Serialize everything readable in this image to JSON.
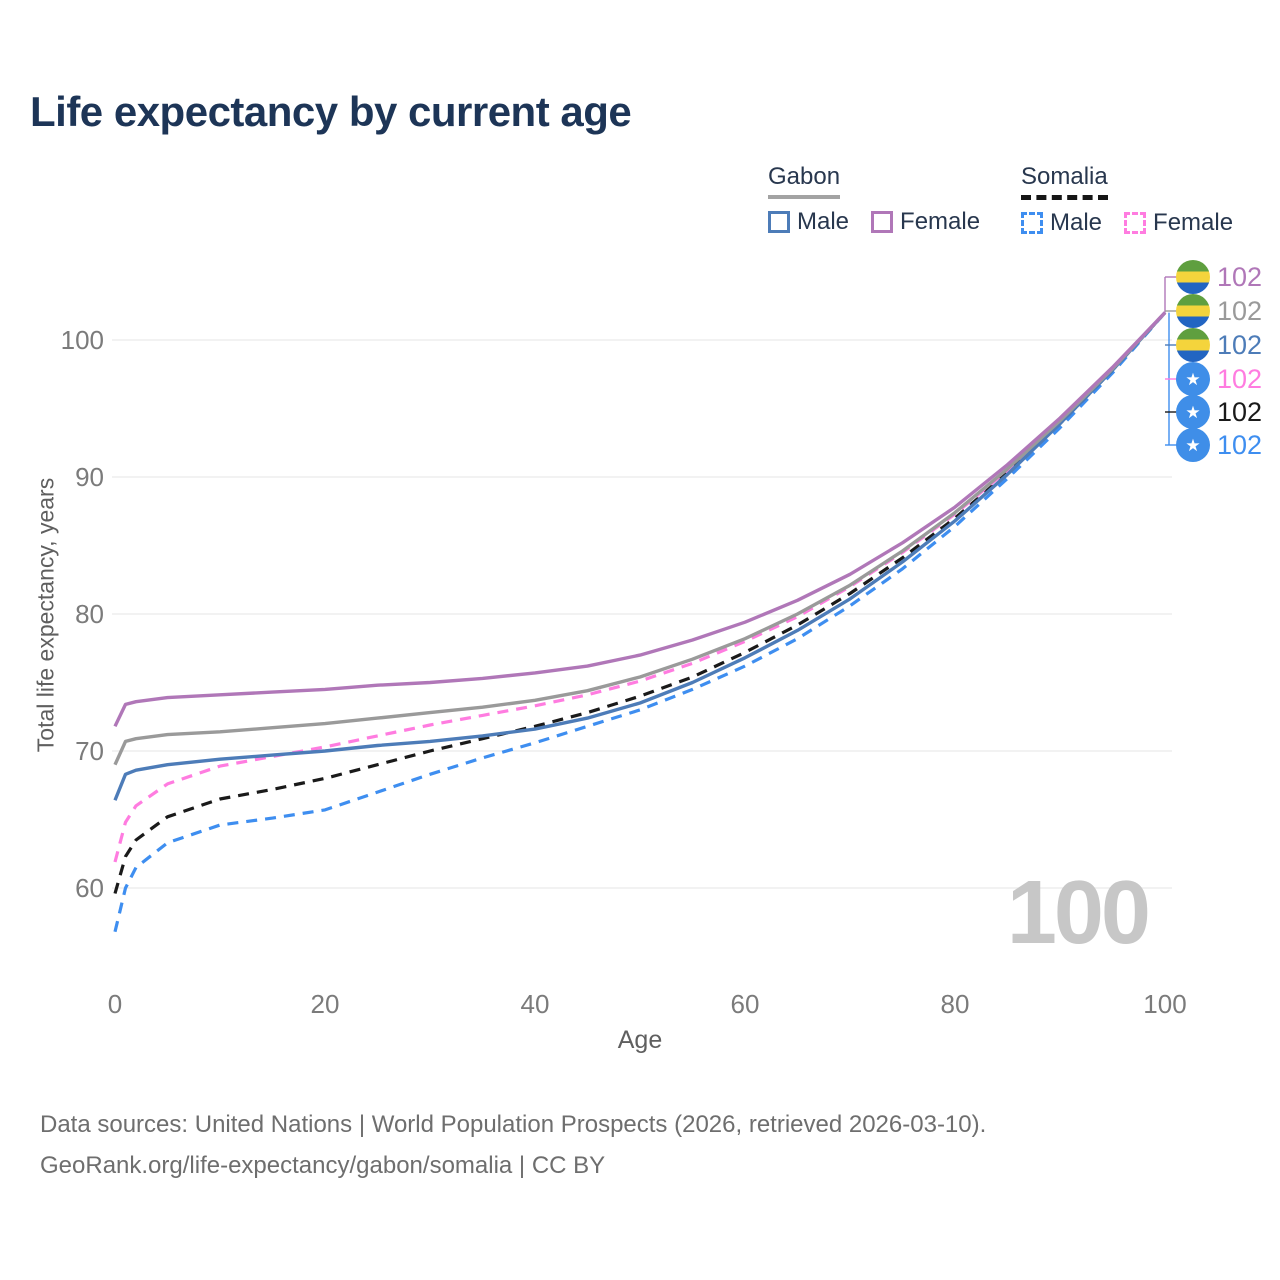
{
  "title": "Life expectancy by current age",
  "legend": {
    "groups": [
      {
        "country": "Gabon",
        "line_style": "solid",
        "underline_color": "#a3a3a3",
        "items": [
          {
            "label": "Male",
            "color": "#4d7cb8"
          },
          {
            "label": "Female",
            "color": "#b077b8"
          }
        ]
      },
      {
        "country": "Somalia",
        "line_style": "dashed",
        "underline_color": "#161616",
        "items": [
          {
            "label": "Male",
            "color": "#3e8ef0"
          },
          {
            "label": "Female",
            "color": "#ff7ce0"
          }
        ]
      }
    ]
  },
  "icons": {
    "gabon_flag": {
      "type": "circle-horizontal-stripes",
      "colors": [
        "#5f9f3f",
        "#f4d43c",
        "#2265c2"
      ]
    },
    "somalia_flag": {
      "type": "circle-star",
      "background": "#3f8ee8",
      "star_color": "#ffffff",
      "glyph": "★"
    }
  },
  "chart_data": {
    "type": "line",
    "title": "Life expectancy by current age",
    "xlabel": "Age",
    "ylabel": "Total life expectancy, years",
    "xlim": [
      0,
      100
    ],
    "ylim": [
      55,
      104
    ],
    "xticks": [
      0,
      20,
      40,
      60,
      80,
      100
    ],
    "yticks": [
      60,
      70,
      80,
      90,
      100
    ],
    "grid": "horizontal-only",
    "legend_position": "top-right",
    "age_counter": "100",
    "x": [
      0,
      1,
      2,
      5,
      10,
      15,
      20,
      25,
      30,
      35,
      40,
      45,
      50,
      55,
      60,
      65,
      70,
      75,
      80,
      85,
      90,
      95,
      100
    ],
    "series": [
      {
        "name": "Gabon Female",
        "country": "Gabon",
        "sex": "Female",
        "color": "#b077b8",
        "dash": false,
        "end_label": "102",
        "values": [
          71.8,
          73.4,
          73.6,
          73.9,
          74.1,
          74.3,
          74.5,
          74.8,
          75.0,
          75.3,
          75.7,
          76.2,
          77.0,
          78.1,
          79.4,
          81.0,
          82.9,
          85.2,
          87.8,
          90.9,
          94.3,
          98.0,
          102
        ]
      },
      {
        "name": "Gabon Both sexes",
        "country": "Gabon",
        "sex": "All",
        "color": "#9a9a9a",
        "dash": false,
        "end_label": "102",
        "values": [
          69.0,
          70.7,
          70.9,
          71.2,
          71.4,
          71.7,
          72.0,
          72.4,
          72.8,
          73.2,
          73.7,
          74.4,
          75.4,
          76.7,
          78.2,
          80.0,
          82.1,
          84.6,
          87.4,
          90.6,
          94.1,
          97.9,
          102
        ]
      },
      {
        "name": "Gabon Male",
        "country": "Gabon",
        "sex": "Male",
        "color": "#4d7cb8",
        "dash": false,
        "end_label": "102",
        "values": [
          66.4,
          68.3,
          68.6,
          69.0,
          69.4,
          69.7,
          70.0,
          70.4,
          70.7,
          71.1,
          71.6,
          72.4,
          73.5,
          75.0,
          76.8,
          78.8,
          81.1,
          83.8,
          86.8,
          90.2,
          93.9,
          97.8,
          102
        ]
      },
      {
        "name": "Somalia Female",
        "country": "Somalia",
        "sex": "Female",
        "color": "#ff7ce0",
        "dash": true,
        "end_label": "102",
        "values": [
          61.9,
          64.8,
          66.0,
          67.6,
          68.9,
          69.6,
          70.3,
          71.1,
          71.9,
          72.6,
          73.3,
          74.1,
          75.1,
          76.4,
          78.0,
          79.8,
          82.0,
          84.5,
          87.3,
          90.5,
          94.0,
          97.9,
          102
        ]
      },
      {
        "name": "Somalia Both sexes",
        "country": "Somalia",
        "sex": "All",
        "color": "#1a1a1a",
        "dash": true,
        "end_label": "102",
        "values": [
          59.6,
          62.3,
          63.5,
          65.2,
          66.5,
          67.2,
          68.0,
          69.0,
          70.0,
          70.9,
          71.8,
          72.8,
          74.0,
          75.4,
          77.2,
          79.2,
          81.5,
          84.1,
          87.0,
          90.3,
          93.9,
          97.8,
          102
        ]
      },
      {
        "name": "Somalia Male",
        "country": "Somalia",
        "sex": "Male",
        "color": "#3e8ef0",
        "dash": true,
        "end_label": "102",
        "values": [
          56.8,
          60.0,
          61.5,
          63.3,
          64.6,
          65.1,
          65.7,
          67.0,
          68.3,
          69.5,
          70.6,
          71.8,
          73.0,
          74.5,
          76.2,
          78.2,
          80.6,
          83.3,
          86.4,
          89.9,
          93.6,
          97.6,
          102
        ]
      }
    ]
  },
  "footer": {
    "line1": "Data sources: United Nations | World Population Prospects (2026, retrieved 2026-03-10).",
    "line2": "GeoRank.org/life-expectancy/gabon/somalia | CC BY"
  }
}
